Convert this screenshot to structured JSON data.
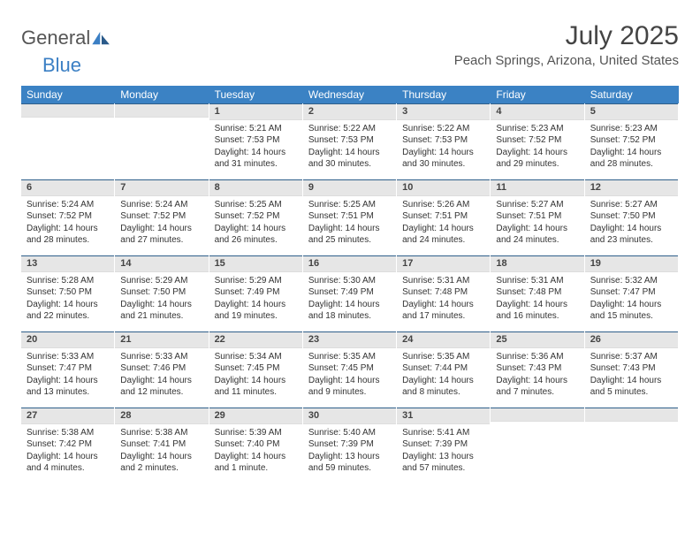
{
  "logo": {
    "text1": "General",
    "text2": "Blue"
  },
  "title": "July 2025",
  "location": "Peach Springs, Arizona, United States",
  "accent_color": "#3b82c4",
  "header_border_color": "#2f5f8a",
  "daynum_bg": "#e6e6e6",
  "day_headers": [
    "Sunday",
    "Monday",
    "Tuesday",
    "Wednesday",
    "Thursday",
    "Friday",
    "Saturday"
  ],
  "weeks": [
    [
      null,
      null,
      {
        "n": "1",
        "sr": "Sunrise: 5:21 AM",
        "ss": "Sunset: 7:53 PM",
        "dl": "Daylight: 14 hours and 31 minutes."
      },
      {
        "n": "2",
        "sr": "Sunrise: 5:22 AM",
        "ss": "Sunset: 7:53 PM",
        "dl": "Daylight: 14 hours and 30 minutes."
      },
      {
        "n": "3",
        "sr": "Sunrise: 5:22 AM",
        "ss": "Sunset: 7:53 PM",
        "dl": "Daylight: 14 hours and 30 minutes."
      },
      {
        "n": "4",
        "sr": "Sunrise: 5:23 AM",
        "ss": "Sunset: 7:52 PM",
        "dl": "Daylight: 14 hours and 29 minutes."
      },
      {
        "n": "5",
        "sr": "Sunrise: 5:23 AM",
        "ss": "Sunset: 7:52 PM",
        "dl": "Daylight: 14 hours and 28 minutes."
      }
    ],
    [
      {
        "n": "6",
        "sr": "Sunrise: 5:24 AM",
        "ss": "Sunset: 7:52 PM",
        "dl": "Daylight: 14 hours and 28 minutes."
      },
      {
        "n": "7",
        "sr": "Sunrise: 5:24 AM",
        "ss": "Sunset: 7:52 PM",
        "dl": "Daylight: 14 hours and 27 minutes."
      },
      {
        "n": "8",
        "sr": "Sunrise: 5:25 AM",
        "ss": "Sunset: 7:52 PM",
        "dl": "Daylight: 14 hours and 26 minutes."
      },
      {
        "n": "9",
        "sr": "Sunrise: 5:25 AM",
        "ss": "Sunset: 7:51 PM",
        "dl": "Daylight: 14 hours and 25 minutes."
      },
      {
        "n": "10",
        "sr": "Sunrise: 5:26 AM",
        "ss": "Sunset: 7:51 PM",
        "dl": "Daylight: 14 hours and 24 minutes."
      },
      {
        "n": "11",
        "sr": "Sunrise: 5:27 AM",
        "ss": "Sunset: 7:51 PM",
        "dl": "Daylight: 14 hours and 24 minutes."
      },
      {
        "n": "12",
        "sr": "Sunrise: 5:27 AM",
        "ss": "Sunset: 7:50 PM",
        "dl": "Daylight: 14 hours and 23 minutes."
      }
    ],
    [
      {
        "n": "13",
        "sr": "Sunrise: 5:28 AM",
        "ss": "Sunset: 7:50 PM",
        "dl": "Daylight: 14 hours and 22 minutes."
      },
      {
        "n": "14",
        "sr": "Sunrise: 5:29 AM",
        "ss": "Sunset: 7:50 PM",
        "dl": "Daylight: 14 hours and 21 minutes."
      },
      {
        "n": "15",
        "sr": "Sunrise: 5:29 AM",
        "ss": "Sunset: 7:49 PM",
        "dl": "Daylight: 14 hours and 19 minutes."
      },
      {
        "n": "16",
        "sr": "Sunrise: 5:30 AM",
        "ss": "Sunset: 7:49 PM",
        "dl": "Daylight: 14 hours and 18 minutes."
      },
      {
        "n": "17",
        "sr": "Sunrise: 5:31 AM",
        "ss": "Sunset: 7:48 PM",
        "dl": "Daylight: 14 hours and 17 minutes."
      },
      {
        "n": "18",
        "sr": "Sunrise: 5:31 AM",
        "ss": "Sunset: 7:48 PM",
        "dl": "Daylight: 14 hours and 16 minutes."
      },
      {
        "n": "19",
        "sr": "Sunrise: 5:32 AM",
        "ss": "Sunset: 7:47 PM",
        "dl": "Daylight: 14 hours and 15 minutes."
      }
    ],
    [
      {
        "n": "20",
        "sr": "Sunrise: 5:33 AM",
        "ss": "Sunset: 7:47 PM",
        "dl": "Daylight: 14 hours and 13 minutes."
      },
      {
        "n": "21",
        "sr": "Sunrise: 5:33 AM",
        "ss": "Sunset: 7:46 PM",
        "dl": "Daylight: 14 hours and 12 minutes."
      },
      {
        "n": "22",
        "sr": "Sunrise: 5:34 AM",
        "ss": "Sunset: 7:45 PM",
        "dl": "Daylight: 14 hours and 11 minutes."
      },
      {
        "n": "23",
        "sr": "Sunrise: 5:35 AM",
        "ss": "Sunset: 7:45 PM",
        "dl": "Daylight: 14 hours and 9 minutes."
      },
      {
        "n": "24",
        "sr": "Sunrise: 5:35 AM",
        "ss": "Sunset: 7:44 PM",
        "dl": "Daylight: 14 hours and 8 minutes."
      },
      {
        "n": "25",
        "sr": "Sunrise: 5:36 AM",
        "ss": "Sunset: 7:43 PM",
        "dl": "Daylight: 14 hours and 7 minutes."
      },
      {
        "n": "26",
        "sr": "Sunrise: 5:37 AM",
        "ss": "Sunset: 7:43 PM",
        "dl": "Daylight: 14 hours and 5 minutes."
      }
    ],
    [
      {
        "n": "27",
        "sr": "Sunrise: 5:38 AM",
        "ss": "Sunset: 7:42 PM",
        "dl": "Daylight: 14 hours and 4 minutes."
      },
      {
        "n": "28",
        "sr": "Sunrise: 5:38 AM",
        "ss": "Sunset: 7:41 PM",
        "dl": "Daylight: 14 hours and 2 minutes."
      },
      {
        "n": "29",
        "sr": "Sunrise: 5:39 AM",
        "ss": "Sunset: 7:40 PM",
        "dl": "Daylight: 14 hours and 1 minute."
      },
      {
        "n": "30",
        "sr": "Sunrise: 5:40 AM",
        "ss": "Sunset: 7:39 PM",
        "dl": "Daylight: 13 hours and 59 minutes."
      },
      {
        "n": "31",
        "sr": "Sunrise: 5:41 AM",
        "ss": "Sunset: 7:39 PM",
        "dl": "Daylight: 13 hours and 57 minutes."
      },
      null,
      null
    ]
  ]
}
